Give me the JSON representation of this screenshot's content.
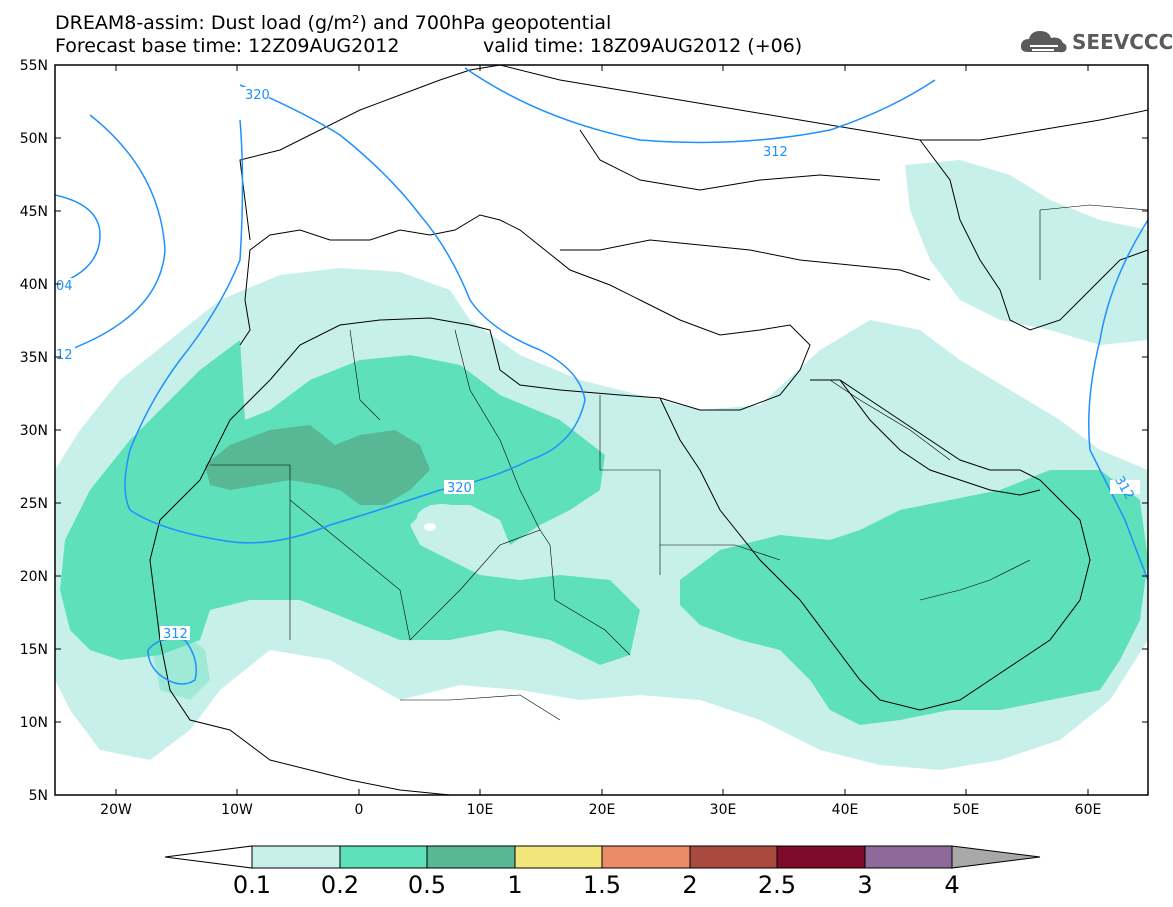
{
  "title": {
    "line1": "DREAM8-assim: Dust load (g/m²) and 700hPa geopotential",
    "line2_left": "Forecast base time: 12Z09AUG2012",
    "line2_right": "valid time: 18Z09AUG2012 (+06)"
  },
  "logo": {
    "text": "SEEVCCC",
    "icon": "cloud-icon"
  },
  "axes": {
    "lat_labels": [
      "55N",
      "50N",
      "45N",
      "40N",
      "35N",
      "30N",
      "25N",
      "20N",
      "15N",
      "10N",
      "5N"
    ],
    "lon_labels": [
      "20W",
      "10W",
      "0",
      "10E",
      "20E",
      "30E",
      "40E",
      "50E",
      "60E"
    ]
  },
  "contour_labels": [
    "320",
    "312",
    "04",
    "12",
    "320",
    "312",
    "312"
  ],
  "colorbar": {
    "labels": [
      "0.1",
      "0.2",
      "0.5",
      "1",
      "1.5",
      "2",
      "2.5",
      "3",
      "4"
    ],
    "colors": [
      "#c8f0ea",
      "#5ee0bb",
      "#58b795",
      "#f2e67a",
      "#ea8c68",
      "#aa4a3e",
      "#7f0a2a",
      "#8e6a9a",
      "#a8a8a8"
    ],
    "triangle_low_color": "#ffffff",
    "triangle_high_color": "#a8a8a8"
  },
  "colors": {
    "dust_low": "#c8f0ea",
    "dust_mid": "#5ee0bb",
    "dust_high": "#58b795",
    "contour": "#1e90ff",
    "borders": "#000000"
  }
}
